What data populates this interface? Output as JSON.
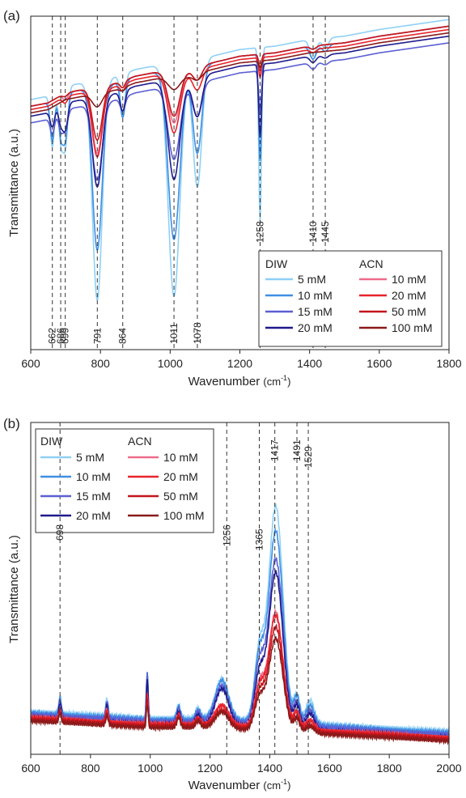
{
  "chart_data": [
    {
      "type": "line",
      "panel_label": "(a)",
      "xlabel": "Wavenumber",
      "xlabel_unit": "(cm",
      "xlabel_sup": "-1",
      "xlabel_close": ")",
      "ylabel": "Transmittance (a.u.)",
      "xlim": [
        600,
        1800
      ],
      "ylim": [
        0,
        1
      ],
      "xticks": [
        "600",
        "800",
        "1000",
        "1200",
        "1400",
        "1600",
        "1800"
      ],
      "legend_placement": "bottom-right",
      "legend_groups": [
        "DIW",
        "ACN"
      ],
      "markers": [
        {
          "x": 662,
          "label": "662",
          "bottom": true
        },
        {
          "x": 686,
          "label": "686",
          "bottom": true
        },
        {
          "x": 699,
          "label": "699",
          "bottom": true
        },
        {
          "x": 791,
          "label": "791",
          "bottom": true
        },
        {
          "x": 864,
          "label": "864",
          "bottom": true
        },
        {
          "x": 1011,
          "label": "1011",
          "bottom": true
        },
        {
          "x": 1078,
          "label": "1078",
          "bottom": true
        },
        {
          "x": 1258,
          "label": "1258",
          "bottom": false
        },
        {
          "x": 1410,
          "label": "1410",
          "bottom": false
        },
        {
          "x": 1445,
          "label": "1445",
          "bottom": false
        }
      ],
      "series": [
        {
          "name": "5 mM",
          "group": "DIW",
          "color": "#8fd0f5"
        },
        {
          "name": "10 mM",
          "group": "DIW",
          "color": "#3f8fe3"
        },
        {
          "name": "15 mM",
          "group": "DIW",
          "color": "#5b5fd2"
        },
        {
          "name": "20 mM",
          "group": "DIW",
          "color": "#1f1a8c"
        },
        {
          "name": "10 mM",
          "group": "ACN",
          "color": "#ef6b8a"
        },
        {
          "name": "20 mM",
          "group": "ACN",
          "color": "#e8232b"
        },
        {
          "name": "50 mM",
          "group": "ACN",
          "color": "#c4141c"
        },
        {
          "name": "100 mM",
          "group": "ACN",
          "color": "#8b1a1a"
        }
      ],
      "profiles": {
        "baseline": [
          [
            600,
            0.75
          ],
          [
            650,
            0.76
          ],
          [
            700,
            0.79
          ],
          [
            750,
            0.8
          ],
          [
            800,
            0.81
          ],
          [
            850,
            0.82
          ],
          [
            900,
            0.84
          ],
          [
            950,
            0.85
          ],
          [
            1000,
            0.86
          ],
          [
            1050,
            0.86
          ],
          [
            1100,
            0.875
          ],
          [
            1200,
            0.9
          ],
          [
            1300,
            0.91
          ],
          [
            1400,
            0.93
          ],
          [
            1500,
            0.94
          ],
          [
            1600,
            0.96
          ],
          [
            1700,
            0.975
          ],
          [
            1800,
            0.99
          ]
        ],
        "peaks": [
          {
            "c": 662,
            "w": 6,
            "d": [
              0.16,
              0.12,
              0.05,
              0.05,
              0.0,
              0.0,
              0.0,
              0.0
            ]
          },
          {
            "c": 686,
            "w": 6,
            "d": [
              0.14,
              0.11,
              0.05,
              0.05,
              0.0,
              0.0,
              0.0,
              0.0
            ]
          },
          {
            "c": 699,
            "w": 7,
            "d": [
              0.18,
              0.14,
              0.06,
              0.08,
              0.02,
              0.02,
              0.01,
              0.0
            ]
          },
          {
            "c": 791,
            "w": 14,
            "d": [
              0.66,
              0.49,
              0.23,
              0.27,
              0.2,
              0.2,
              0.16,
              0.04
            ]
          },
          {
            "c": 864,
            "w": 7,
            "d": [
              0.12,
              0.11,
              0.04,
              0.06,
              0.02,
              0.02,
              0.02,
              0.01
            ]
          },
          {
            "c": 1011,
            "w": 17,
            "d": [
              0.7,
              0.51,
              0.22,
              0.3,
              0.16,
              0.18,
              0.14,
              0.04
            ]
          },
          {
            "c": 1078,
            "w": 13,
            "d": [
              0.38,
              0.26,
              0.1,
              0.12,
              0.04,
              0.06,
              0.04,
              0.02
            ]
          },
          {
            "c": 1258,
            "w": 4,
            "d": [
              0.52,
              0.32,
              0.12,
              0.22,
              0.06,
              0.06,
              0.04,
              0.02
            ]
          },
          {
            "c": 1410,
            "w": 9,
            "d": [
              0.06,
              0.04,
              0.02,
              0.02,
              0.01,
              0.01,
              0.01,
              0.0
            ]
          },
          {
            "c": 1445,
            "w": 9,
            "d": [
              0.03,
              0.02,
              0.01,
              0.01,
              0.0,
              0.0,
              0.0,
              0.0
            ]
          }
        ],
        "offsets": [
          0.0,
          0.02,
          0.07,
          0.05,
          0.02,
          0.03,
          0.02,
          0.04
        ]
      }
    },
    {
      "type": "line",
      "panel_label": "(b)",
      "xlabel": "Wavenumber",
      "xlabel_unit": "(cm",
      "xlabel_sup": "-1",
      "xlabel_close": ")",
      "ylabel": "Transmittance (a.u.)",
      "xlim": [
        600,
        2000
      ],
      "ylim": [
        0,
        1
      ],
      "xticks": [
        "600",
        "800",
        "1000",
        "1200",
        "1400",
        "1600",
        "1800",
        "2000"
      ],
      "legend_placement": "top-left",
      "legend_groups": [
        "DIW",
        "ACN"
      ],
      "markers": [
        {
          "x": 698,
          "label": "698",
          "bottom": false
        },
        {
          "x": 1256,
          "label": "1256",
          "bottom": false
        },
        {
          "x": 1365,
          "label": "1365",
          "bottom": false
        },
        {
          "x": 1417,
          "label": "1417",
          "bottom": false
        },
        {
          "x": 1491,
          "label": "1491",
          "bottom": false
        },
        {
          "x": 1529,
          "label": "1529",
          "bottom": false
        }
      ],
      "series": [
        {
          "name": "5 mM",
          "group": "DIW",
          "color": "#8fd0f5"
        },
        {
          "name": "10 mM",
          "group": "DIW",
          "color": "#3f8fe3"
        },
        {
          "name": "15 mM",
          "group": "DIW",
          "color": "#5b5fd2"
        },
        {
          "name": "20 mM",
          "group": "DIW",
          "color": "#1f1a8c"
        },
        {
          "name": "10 mM",
          "group": "ACN",
          "color": "#ef6b8a"
        },
        {
          "name": "20 mM",
          "group": "ACN",
          "color": "#e8232b"
        },
        {
          "name": "50 mM",
          "group": "ACN",
          "color": "#c4141c"
        },
        {
          "name": "100 mM",
          "group": "ACN",
          "color": "#8b1a1a"
        }
      ],
      "profiles": {
        "baseline": [
          [
            600,
            0.11
          ],
          [
            800,
            0.1
          ],
          [
            1000,
            0.09
          ],
          [
            1200,
            0.09
          ],
          [
            1400,
            0.08
          ],
          [
            1600,
            0.07
          ],
          [
            1800,
            0.06
          ],
          [
            2000,
            0.05
          ]
        ],
        "peaks": [
          {
            "c": 698,
            "w": 4,
            "d": [
              0.05,
              0.05,
              0.05,
              0.05,
              0.03,
              0.03,
              0.03,
              0.03
            ]
          },
          {
            "c": 855,
            "w": 4,
            "d": [
              0.05,
              0.05,
              0.05,
              0.05,
              0.04,
              0.04,
              0.03,
              0.03
            ]
          },
          {
            "c": 990,
            "w": 3,
            "d": [
              0.14,
              0.14,
              0.14,
              0.14,
              0.09,
              0.09,
              0.08,
              0.07
            ]
          },
          {
            "c": 1095,
            "w": 6,
            "d": [
              0.04,
              0.04,
              0.04,
              0.04,
              0.03,
              0.03,
              0.03,
              0.03
            ]
          },
          {
            "c": 1160,
            "w": 8,
            "d": [
              0.03,
              0.03,
              0.03,
              0.03,
              0.02,
              0.02,
              0.02,
              0.02
            ]
          },
          {
            "c": 1240,
            "w": 22,
            "d": [
              0.12,
              0.12,
              0.11,
              0.11,
              0.06,
              0.06,
              0.05,
              0.05
            ]
          },
          {
            "c": 1365,
            "w": 16,
            "d": [
              0.2,
              0.19,
              0.17,
              0.15,
              0.12,
              0.11,
              0.1,
              0.09
            ]
          },
          {
            "c": 1420,
            "w": 24,
            "d": [
              0.65,
              0.58,
              0.5,
              0.47,
              0.35,
              0.34,
              0.31,
              0.28
            ]
          },
          {
            "c": 1491,
            "w": 10,
            "d": [
              0.08,
              0.08,
              0.07,
              0.07,
              0.05,
              0.05,
              0.04,
              0.04
            ]
          },
          {
            "c": 1535,
            "w": 14,
            "d": [
              0.07,
              0.06,
              0.05,
              0.05,
              0.03,
              0.03,
              0.02,
              0.02
            ]
          }
        ],
        "offsets": [
          0.02,
          0.015,
          0.01,
          0.0,
          0.0,
          0.0,
          -0.005,
          -0.01
        ]
      }
    }
  ]
}
